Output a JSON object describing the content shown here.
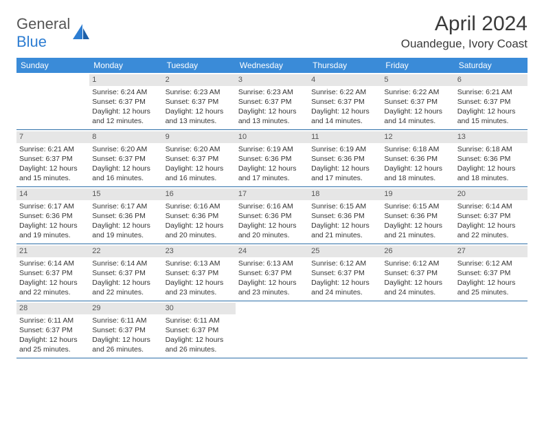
{
  "brand": {
    "part1": "General",
    "part2": "Blue"
  },
  "title": "April 2024",
  "location": "Ouandegue, Ivory Coast",
  "colors": {
    "header_bg": "#3a8bd8",
    "header_text": "#ffffff",
    "daynum_bg": "#e6e6e6",
    "rule": "#2d6fa8",
    "brand_blue": "#2d7dd2"
  },
  "day_names": [
    "Sunday",
    "Monday",
    "Tuesday",
    "Wednesday",
    "Thursday",
    "Friday",
    "Saturday"
  ],
  "start_offset": 1,
  "days": [
    {
      "n": 1,
      "sunrise": "6:24 AM",
      "sunset": "6:37 PM",
      "dh": 12,
      "dm": 12
    },
    {
      "n": 2,
      "sunrise": "6:23 AM",
      "sunset": "6:37 PM",
      "dh": 12,
      "dm": 13
    },
    {
      "n": 3,
      "sunrise": "6:23 AM",
      "sunset": "6:37 PM",
      "dh": 12,
      "dm": 13
    },
    {
      "n": 4,
      "sunrise": "6:22 AM",
      "sunset": "6:37 PM",
      "dh": 12,
      "dm": 14
    },
    {
      "n": 5,
      "sunrise": "6:22 AM",
      "sunset": "6:37 PM",
      "dh": 12,
      "dm": 14
    },
    {
      "n": 6,
      "sunrise": "6:21 AM",
      "sunset": "6:37 PM",
      "dh": 12,
      "dm": 15
    },
    {
      "n": 7,
      "sunrise": "6:21 AM",
      "sunset": "6:37 PM",
      "dh": 12,
      "dm": 15
    },
    {
      "n": 8,
      "sunrise": "6:20 AM",
      "sunset": "6:37 PM",
      "dh": 12,
      "dm": 16
    },
    {
      "n": 9,
      "sunrise": "6:20 AM",
      "sunset": "6:37 PM",
      "dh": 12,
      "dm": 16
    },
    {
      "n": 10,
      "sunrise": "6:19 AM",
      "sunset": "6:36 PM",
      "dh": 12,
      "dm": 17
    },
    {
      "n": 11,
      "sunrise": "6:19 AM",
      "sunset": "6:36 PM",
      "dh": 12,
      "dm": 17
    },
    {
      "n": 12,
      "sunrise": "6:18 AM",
      "sunset": "6:36 PM",
      "dh": 12,
      "dm": 18
    },
    {
      "n": 13,
      "sunrise": "6:18 AM",
      "sunset": "6:36 PM",
      "dh": 12,
      "dm": 18
    },
    {
      "n": 14,
      "sunrise": "6:17 AM",
      "sunset": "6:36 PM",
      "dh": 12,
      "dm": 19
    },
    {
      "n": 15,
      "sunrise": "6:17 AM",
      "sunset": "6:36 PM",
      "dh": 12,
      "dm": 19
    },
    {
      "n": 16,
      "sunrise": "6:16 AM",
      "sunset": "6:36 PM",
      "dh": 12,
      "dm": 20
    },
    {
      "n": 17,
      "sunrise": "6:16 AM",
      "sunset": "6:36 PM",
      "dh": 12,
      "dm": 20
    },
    {
      "n": 18,
      "sunrise": "6:15 AM",
      "sunset": "6:36 PM",
      "dh": 12,
      "dm": 21
    },
    {
      "n": 19,
      "sunrise": "6:15 AM",
      "sunset": "6:36 PM",
      "dh": 12,
      "dm": 21
    },
    {
      "n": 20,
      "sunrise": "6:14 AM",
      "sunset": "6:37 PM",
      "dh": 12,
      "dm": 22
    },
    {
      "n": 21,
      "sunrise": "6:14 AM",
      "sunset": "6:37 PM",
      "dh": 12,
      "dm": 22
    },
    {
      "n": 22,
      "sunrise": "6:14 AM",
      "sunset": "6:37 PM",
      "dh": 12,
      "dm": 22
    },
    {
      "n": 23,
      "sunrise": "6:13 AM",
      "sunset": "6:37 PM",
      "dh": 12,
      "dm": 23
    },
    {
      "n": 24,
      "sunrise": "6:13 AM",
      "sunset": "6:37 PM",
      "dh": 12,
      "dm": 23
    },
    {
      "n": 25,
      "sunrise": "6:12 AM",
      "sunset": "6:37 PM",
      "dh": 12,
      "dm": 24
    },
    {
      "n": 26,
      "sunrise": "6:12 AM",
      "sunset": "6:37 PM",
      "dh": 12,
      "dm": 24
    },
    {
      "n": 27,
      "sunrise": "6:12 AM",
      "sunset": "6:37 PM",
      "dh": 12,
      "dm": 25
    },
    {
      "n": 28,
      "sunrise": "6:11 AM",
      "sunset": "6:37 PM",
      "dh": 12,
      "dm": 25
    },
    {
      "n": 29,
      "sunrise": "6:11 AM",
      "sunset": "6:37 PM",
      "dh": 12,
      "dm": 26
    },
    {
      "n": 30,
      "sunrise": "6:11 AM",
      "sunset": "6:37 PM",
      "dh": 12,
      "dm": 26
    }
  ],
  "labels": {
    "sunrise_prefix": "Sunrise: ",
    "sunset_prefix": "Sunset: ",
    "daylight_prefix": "Daylight: ",
    "hours_word": " hours",
    "and_word": "and ",
    "minutes_word": " minutes."
  }
}
